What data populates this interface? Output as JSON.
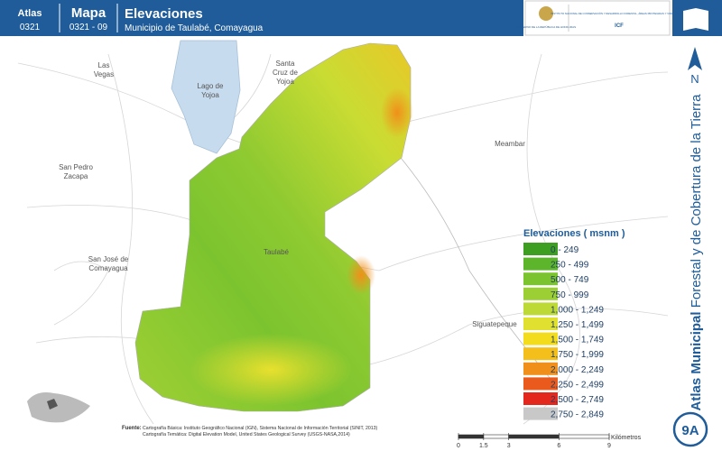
{
  "header": {
    "atlas_label": "Atlas",
    "atlas_code": "0321",
    "mapa_label": "Mapa",
    "mapa_code": "0321 - 09",
    "title": "Elevaciones",
    "subtitle": "Municipio de Taulabé, Comayagua"
  },
  "logos": {
    "government": "GOBIERNO DE LA REPÚBLICA DE HONDURAS",
    "institute": "INSTITUTO NACIONAL DE CONSERVACIÓN Y DESARROLLO FORESTAL, ÁREAS PROTEGIDAS Y VIDA SILVESTRE",
    "acronym": "ICF"
  },
  "places": [
    {
      "lines": [
        "Las",
        "Vegas"
      ]
    },
    {
      "lines": [
        "Lago de",
        "Yojoa"
      ]
    },
    {
      "lines": [
        "Santa",
        "Cruz de",
        "Yojoa"
      ]
    },
    {
      "lines": [
        "Meambar"
      ]
    },
    {
      "lines": [
        "San Pedro",
        "Zacapa"
      ]
    },
    {
      "lines": [
        "Taulabé"
      ]
    },
    {
      "lines": [
        "San José de",
        "Comayagua"
      ]
    },
    {
      "lines": [
        "Siguatepeque"
      ]
    }
  ],
  "legend": {
    "title": "Elevaciones ( msnm )",
    "items": [
      {
        "label": "0 - 249",
        "color": "#3d9e22"
      },
      {
        "label": "250 - 499",
        "color": "#5cb52a"
      },
      {
        "label": "500 - 749",
        "color": "#7cc42f"
      },
      {
        "label": "750 - 999",
        "color": "#9ccf33"
      },
      {
        "label": "1,000 - 1,249",
        "color": "#bdd935"
      },
      {
        "label": "1,250 - 1,499",
        "color": "#dfe02f"
      },
      {
        "label": "1,500 - 1,749",
        "color": "#f3dc1c"
      },
      {
        "label": "1,750 - 1,999",
        "color": "#f5bf1b"
      },
      {
        "label": "2,000 - 2,249",
        "color": "#f0901a"
      },
      {
        "label": "2,250 - 2,499",
        "color": "#ea5a1c"
      },
      {
        "label": "2,500 - 2,749",
        "color": "#e3271c"
      },
      {
        "label": "2,750 - 2,849",
        "color": "#c8c8c8"
      }
    ]
  },
  "scale": {
    "ticks": [
      0,
      1.5,
      3,
      6,
      9
    ],
    "unit": "Kilómetros"
  },
  "source": {
    "label": "Fuente:",
    "lines": [
      "Cartografía Básica: Instituto Geográfico Nacional (IGN), Sistema Nacional de Información Territorial (SINIT, 2013)",
      "Cartografía Temática: Digital Elevation Model, United States Geological Survey (USGS-NASA,2014)"
    ]
  },
  "side": {
    "north": "N",
    "banner_bold": "Atlas Municipal",
    "banner_rest": " Forestal y de Cobertura de la Tierra",
    "badge": "9A"
  }
}
